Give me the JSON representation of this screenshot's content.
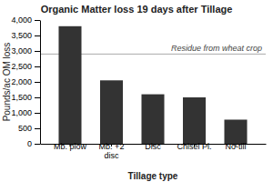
{
  "chart_data": {
    "type": "bar",
    "title": "Organic Matter loss 19 days after Tillage",
    "xlabel": "Tillage type",
    "ylabel": "Pounds/ac OM loss",
    "categories": [
      "Mb. plow",
      "Mb. +2\ndisc",
      "Disc",
      "Chisel Pl.",
      "No-till"
    ],
    "values": [
      3800,
      2050,
      1600,
      1500,
      780
    ],
    "color": "#333333",
    "ylim": [
      0,
      4000
    ],
    "yticks": [
      0,
      500,
      {
        "value": 1000,
        "label": "1,000"
      },
      {
        "value": 1500,
        "label": "1,500"
      },
      {
        "value": 2000,
        "label": "2,000"
      },
      {
        "value": 2500,
        "label": "2,500"
      },
      {
        "value": 3000,
        "label": "3,000"
      },
      {
        "value": 3500,
        "label": "3,500"
      },
      {
        "value": 4000,
        "label": "4,000"
      }
    ],
    "grid": false,
    "annotations": [
      {
        "type": "hline",
        "y": 2900,
        "label": "Residue from wheat crop",
        "color": "#aaaaaa"
      }
    ]
  }
}
